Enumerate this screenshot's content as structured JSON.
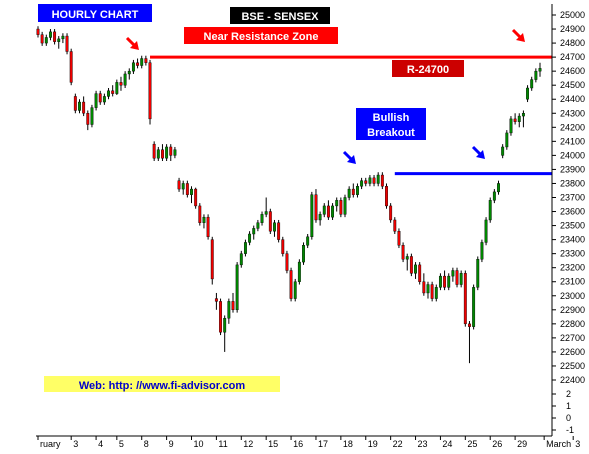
{
  "chart_data": {
    "type": "candlestick",
    "title": "BSE - SENSEX",
    "panel_label": "HOURLY CHART",
    "annotations": {
      "resistance_zone": "Near Resistance Zone",
      "resistance_level_label": "R-24700",
      "breakout": [
        "Bullish",
        "Breakout"
      ],
      "web": "Web: http: //www.fi-advisor.com"
    },
    "levels": [
      {
        "name": "resistance",
        "value": 24700,
        "color": "#ff0000",
        "from_candle": 27
      },
      {
        "name": "breakout",
        "value": 23870,
        "color": "#0000ff",
        "from_candle": 86
      }
    ],
    "ylim": [
      22400,
      25000
    ],
    "yticks": [
      22400,
      22500,
      22600,
      22700,
      22800,
      22900,
      23000,
      23100,
      23200,
      23300,
      23400,
      23500,
      23600,
      23700,
      23800,
      23900,
      24000,
      24100,
      24200,
      24300,
      24400,
      24500,
      24600,
      24700,
      24800,
      24900,
      25000
    ],
    "y_extra_ticks": [
      "2",
      "1",
      "0",
      "-1"
    ],
    "x_ticks": [
      {
        "label": "ruary",
        "pos": 0
      },
      {
        "label": "3",
        "pos": 8
      },
      {
        "label": "4",
        "pos": 14
      },
      {
        "label": "5",
        "pos": 19
      },
      {
        "label": "8",
        "pos": 25
      },
      {
        "label": "9",
        "pos": 31
      },
      {
        "label": "10",
        "pos": 37
      },
      {
        "label": "11",
        "pos": 43
      },
      {
        "label": "12",
        "pos": 49
      },
      {
        "label": "15",
        "pos": 55
      },
      {
        "label": "16",
        "pos": 61
      },
      {
        "label": "17",
        "pos": 67
      },
      {
        "label": "18",
        "pos": 73
      },
      {
        "label": "19",
        "pos": 79
      },
      {
        "label": "22",
        "pos": 85
      },
      {
        "label": "23",
        "pos": 91
      },
      {
        "label": "24",
        "pos": 97
      },
      {
        "label": "25",
        "pos": 103
      },
      {
        "label": "26",
        "pos": 109
      },
      {
        "label": "29",
        "pos": 115
      },
      {
        "label": "March",
        "pos": 122
      },
      {
        "label": "3",
        "pos": 129
      }
    ],
    "candles": [
      [
        24900,
        24920,
        24840,
        24860
      ],
      [
        24860,
        24880,
        24780,
        24800
      ],
      [
        24800,
        24860,
        24780,
        24840
      ],
      [
        24840,
        24900,
        24820,
        24880
      ],
      [
        24880,
        24900,
        24790,
        24810
      ],
      [
        24810,
        24850,
        24760,
        24830
      ],
      [
        24830,
        24870,
        24800,
        24850
      ],
      [
        24850,
        24870,
        24720,
        24740
      ],
      [
        24740,
        24760,
        24500,
        24520
      ],
      [
        24420,
        24440,
        24300,
        24320
      ],
      [
        24320,
        24400,
        24300,
        24380
      ],
      [
        24380,
        24420,
        24280,
        24300
      ],
      [
        24300,
        24320,
        24180,
        24220
      ],
      [
        24220,
        24360,
        24200,
        24340
      ],
      [
        24340,
        24460,
        24320,
        24440
      ],
      [
        24440,
        24460,
        24360,
        24380
      ],
      [
        24380,
        24440,
        24360,
        24420
      ],
      [
        24420,
        24480,
        24400,
        24460
      ],
      [
        24460,
        24500,
        24420,
        24440
      ],
      [
        24440,
        24540,
        24430,
        24520
      ],
      [
        24520,
        24560,
        24460,
        24500
      ],
      [
        24500,
        24600,
        24480,
        24580
      ],
      [
        24580,
        24620,
        24540,
        24600
      ],
      [
        24600,
        24680,
        24580,
        24660
      ],
      [
        24660,
        24690,
        24620,
        24640
      ],
      [
        24640,
        24710,
        24620,
        24690
      ],
      [
        24690,
        24710,
        24640,
        24660
      ],
      [
        24660,
        24680,
        24220,
        24260
      ],
      [
        24080,
        24100,
        23960,
        23980
      ],
      [
        23980,
        24060,
        23960,
        24040
      ],
      [
        24040,
        24080,
        23960,
        23980
      ],
      [
        23980,
        24080,
        23960,
        24060
      ],
      [
        24060,
        24080,
        23960,
        24000
      ],
      [
        24000,
        24060,
        23980,
        24040
      ],
      [
        23820,
        23840,
        23740,
        23760
      ],
      [
        23760,
        23820,
        23720,
        23800
      ],
      [
        23800,
        23820,
        23700,
        23720
      ],
      [
        23720,
        23780,
        23660,
        23760
      ],
      [
        23760,
        23770,
        23620,
        23640
      ],
      [
        23640,
        23660,
        23500,
        23520
      ],
      [
        23520,
        23580,
        23480,
        23560
      ],
      [
        23560,
        23580,
        23400,
        23420
      ],
      [
        23400,
        23420,
        23080,
        23120
      ],
      [
        22980,
        23020,
        22900,
        22960
      ],
      [
        22960,
        22980,
        22720,
        22740
      ],
      [
        22740,
        22860,
        22600,
        22840
      ],
      [
        22840,
        22980,
        22800,
        22960
      ],
      [
        22960,
        23020,
        22880,
        22900
      ],
      [
        22900,
        23240,
        22880,
        23220
      ],
      [
        23220,
        23320,
        23200,
        23300
      ],
      [
        23300,
        23400,
        23280,
        23380
      ],
      [
        23380,
        23460,
        23360,
        23440
      ],
      [
        23440,
        23500,
        23400,
        23480
      ],
      [
        23480,
        23540,
        23460,
        23520
      ],
      [
        23520,
        23600,
        23500,
        23580
      ],
      [
        23580,
        23700,
        23560,
        23600
      ],
      [
        23600,
        23620,
        23440,
        23460
      ],
      [
        23460,
        23540,
        23420,
        23520
      ],
      [
        23520,
        23540,
        23380,
        23400
      ],
      [
        23400,
        23420,
        23280,
        23300
      ],
      [
        23300,
        23320,
        23160,
        23180
      ],
      [
        23180,
        23200,
        22960,
        22980
      ],
      [
        22980,
        23120,
        22960,
        23100
      ],
      [
        23100,
        23260,
        23080,
        23240
      ],
      [
        23240,
        23380,
        23220,
        23360
      ],
      [
        23360,
        23440,
        23340,
        23420
      ],
      [
        23420,
        23740,
        23400,
        23720
      ],
      [
        23720,
        23760,
        23520,
        23540
      ],
      [
        23540,
        23600,
        23500,
        23580
      ],
      [
        23580,
        23660,
        23560,
        23640
      ],
      [
        23640,
        23680,
        23540,
        23560
      ],
      [
        23560,
        23660,
        23540,
        23640
      ],
      [
        23640,
        23700,
        23600,
        23680
      ],
      [
        23680,
        23700,
        23560,
        23580
      ],
      [
        23580,
        23720,
        23560,
        23700
      ],
      [
        23700,
        23780,
        23680,
        23760
      ],
      [
        23760,
        23800,
        23700,
        23720
      ],
      [
        23720,
        23800,
        23700,
        23780
      ],
      [
        23780,
        23840,
        23760,
        23820
      ],
      [
        23820,
        23840,
        23780,
        23800
      ],
      [
        23800,
        23860,
        23780,
        23840
      ],
      [
        23840,
        23860,
        23780,
        23800
      ],
      [
        23800,
        23880,
        23780,
        23860
      ],
      [
        23860,
        23880,
        23760,
        23780
      ],
      [
        23780,
        23800,
        23620,
        23640
      ],
      [
        23640,
        23660,
        23520,
        23540
      ],
      [
        23540,
        23560,
        23440,
        23460
      ],
      [
        23460,
        23480,
        23340,
        23360
      ],
      [
        23360,
        23380,
        23240,
        23260
      ],
      [
        23260,
        23300,
        23180,
        23280
      ],
      [
        23280,
        23300,
        23140,
        23160
      ],
      [
        23160,
        23240,
        23120,
        23220
      ],
      [
        23220,
        23240,
        23080,
        23100
      ],
      [
        23100,
        23160,
        23000,
        23020
      ],
      [
        23020,
        23100,
        22980,
        23080
      ],
      [
        23080,
        23100,
        22960,
        22980
      ],
      [
        22980,
        23080,
        22960,
        23060
      ],
      [
        23060,
        23160,
        23040,
        23140
      ],
      [
        23140,
        23180,
        23040,
        23060
      ],
      [
        23060,
        23160,
        23040,
        23140
      ],
      [
        23140,
        23200,
        23100,
        23180
      ],
      [
        23180,
        23200,
        23060,
        23080
      ],
      [
        23080,
        23180,
        23060,
        23160
      ],
      [
        23160,
        23180,
        22780,
        22800
      ],
      [
        22800,
        22820,
        22520,
        22780
      ],
      [
        22780,
        23080,
        22760,
        23060
      ],
      [
        23060,
        23280,
        23040,
        23260
      ],
      [
        23260,
        23400,
        23240,
        23380
      ],
      [
        23380,
        23560,
        23360,
        23540
      ],
      [
        23540,
        23700,
        23520,
        23680
      ],
      [
        23680,
        23760,
        23660,
        23740
      ],
      [
        23740,
        23820,
        23720,
        23800
      ],
      [
        24000,
        24080,
        23980,
        24060
      ],
      [
        24060,
        24180,
        24040,
        24160
      ],
      [
        24160,
        24280,
        24140,
        24260
      ],
      [
        24260,
        24300,
        24220,
        24240
      ],
      [
        24240,
        24300,
        24200,
        24280
      ],
      [
        24280,
        24320,
        24200,
        24300
      ],
      [
        24400,
        24500,
        24380,
        24480
      ],
      [
        24480,
        24560,
        24460,
        24540
      ],
      [
        24540,
        24620,
        24520,
        24600
      ],
      [
        24600,
        24660,
        24560,
        24620
      ]
    ],
    "legend": "none",
    "grid": false
  }
}
